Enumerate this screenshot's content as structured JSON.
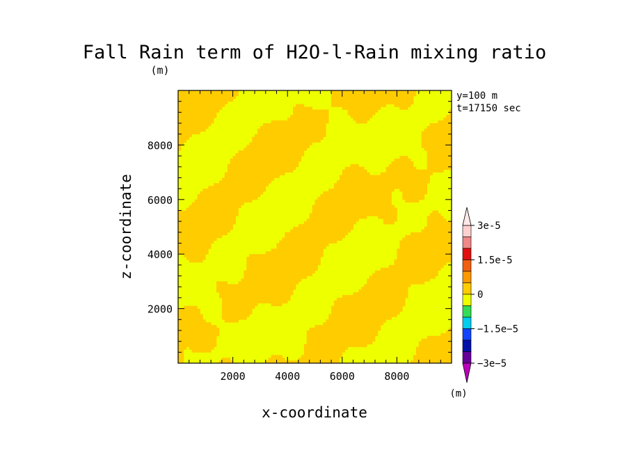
{
  "chart_data": {
    "type": "heatmap",
    "title": "Fall Rain term of H2O-l-Rain mixing ratio",
    "plot_unit": "(m)",
    "xlabel": "x-coordinate",
    "ylabel": "z-coordinate",
    "annotations": [
      "y=100 m",
      "t=17150 sec"
    ],
    "x_range": [
      0,
      10000
    ],
    "y_range": [
      0,
      10000
    ],
    "x_ticks": [
      2000,
      4000,
      6000,
      8000
    ],
    "y_ticks": [
      2000,
      4000,
      6000,
      8000
    ],
    "x_tick_labels": [
      "2000",
      "4000",
      "6000",
      "8000"
    ],
    "y_tick_labels": [
      "2000",
      "4000",
      "6000",
      "8000"
    ],
    "grid": false,
    "field_colors": {
      "small_positive": "#ffcc00",
      "small_negative": "#eeff00"
    },
    "colorbar": {
      "unit": "(m)",
      "levels": [
        -3e-05,
        -2.5e-05,
        -2e-05,
        -1.5e-05,
        -1e-05,
        -5e-06,
        0,
        5e-06,
        1e-05,
        1.5e-05,
        2e-05,
        2.5e-05,
        3e-05
      ],
      "labels": [
        {
          "value": 3e-05,
          "text": "3e-5"
        },
        {
          "value": 1.5e-05,
          "text": "1.5e-5"
        },
        {
          "value": 0,
          "text": "0"
        },
        {
          "value": -1.5e-05,
          "text": "−1.5e−5"
        },
        {
          "value": -3e-05,
          "text": "−3e−5"
        }
      ],
      "colors_top_to_bottom": [
        "#ffd0d0",
        "#f08888",
        "#e01010",
        "#f06010",
        "#ff9900",
        "#ffcc00",
        "#eeff00",
        "#33dd55",
        "#00ccee",
        "#1144ff",
        "#0011aa",
        "#660099"
      ]
    }
  }
}
